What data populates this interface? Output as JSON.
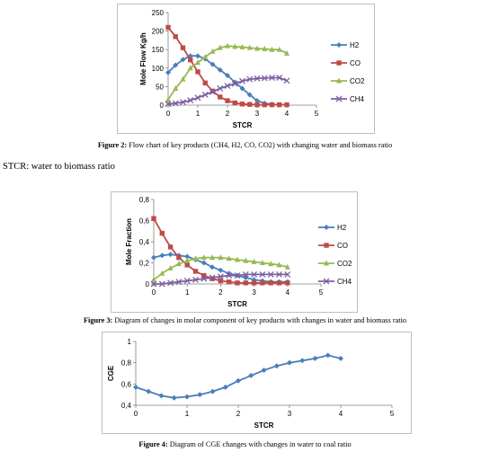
{
  "captions": {
    "fig2_label": "Figure 2:",
    "fig2_text": " Flow chart of key products (CH4, H2, CO, CO2) with changing water and biomass ratio",
    "note": "STCR: water to biomass ratio",
    "fig3_label": "Figure 3:",
    "fig3_text": " Diagram of changes in molar component of key products with changes in water and biomass ratio",
    "fig4_label": "Figure 4:",
    "fig4_text": " Diagram of CGE changes with changes in water to coal ratio"
  },
  "colors": {
    "H2": "#4a7ebb",
    "CO": "#be4b48",
    "CO2": "#98b954",
    "CH4": "#7d60a0",
    "CGE": "#4a7ebb",
    "frame": "#bfbfbf",
    "axis": "#808080"
  },
  "chart_data": [
    {
      "id": "fig2",
      "type": "line",
      "xlabel": "STCR",
      "ylabel": "Mole Flow  Kg/h",
      "xlim": [
        0,
        5
      ],
      "ylim": [
        0,
        250
      ],
      "xticks": [
        0,
        1,
        2,
        3,
        4,
        5
      ],
      "yticks": [
        0,
        50,
        100,
        150,
        200,
        250
      ],
      "ytick_labels": [
        "0",
        "50",
        "100",
        "150",
        "200",
        "250"
      ],
      "grid": false,
      "legend": "right",
      "x": [
        0,
        0.25,
        0.5,
        0.75,
        1,
        1.25,
        1.5,
        1.75,
        2,
        2.25,
        2.5,
        2.75,
        3,
        3.25,
        3.5,
        3.75,
        4
      ],
      "series": [
        {
          "name": "H2",
          "marker": "diamond",
          "values": [
            88,
            108,
            123,
            133,
            133,
            125,
            110,
            95,
            80,
            62,
            45,
            28,
            12,
            5,
            2,
            1,
            1
          ]
        },
        {
          "name": "CO",
          "marker": "square",
          "values": [
            210,
            185,
            155,
            122,
            90,
            60,
            38,
            22,
            12,
            6,
            3,
            2,
            1,
            1,
            1,
            1,
            1
          ]
        },
        {
          "name": "CO2",
          "marker": "triangle",
          "values": [
            15,
            45,
            70,
            100,
            115,
            130,
            145,
            155,
            160,
            158,
            157,
            155,
            153,
            152,
            150,
            150,
            140
          ]
        },
        {
          "name": "CH4",
          "marker": "x",
          "values": [
            3,
            5,
            8,
            13,
            20,
            28,
            36,
            45,
            52,
            58,
            65,
            70,
            72,
            73,
            74,
            74,
            66
          ]
        }
      ]
    },
    {
      "id": "fig3",
      "type": "line",
      "xlabel": "STCR",
      "ylabel": "Mole Fraction",
      "xlim": [
        0,
        5
      ],
      "ylim": [
        0,
        0.8
      ],
      "xticks": [
        0,
        1,
        2,
        3,
        4,
        5
      ],
      "yticks": [
        0,
        0.2,
        0.4,
        0.6,
        0.8
      ],
      "ytick_labels": [
        "0",
        "0,2",
        "0,4",
        "0,6",
        "0,8"
      ],
      "grid": false,
      "legend": "right",
      "x": [
        0,
        0.25,
        0.5,
        0.75,
        1,
        1.25,
        1.5,
        1.75,
        2,
        2.25,
        2.5,
        2.75,
        3,
        3.25,
        3.5,
        3.75,
        4
      ],
      "series": [
        {
          "name": "H2",
          "marker": "diamond",
          "values": [
            0.25,
            0.27,
            0.28,
            0.27,
            0.26,
            0.23,
            0.2,
            0.16,
            0.13,
            0.1,
            0.08,
            0.06,
            0.04,
            0.03,
            0.02,
            0.02,
            0.02
          ]
        },
        {
          "name": "CO",
          "marker": "square",
          "values": [
            0.62,
            0.48,
            0.35,
            0.25,
            0.18,
            0.12,
            0.08,
            0.05,
            0.03,
            0.02,
            0.01,
            0.01,
            0.01,
            0.01,
            0.01,
            0.01,
            0.01
          ]
        },
        {
          "name": "CO2",
          "marker": "triangle",
          "values": [
            0.04,
            0.1,
            0.15,
            0.19,
            0.22,
            0.24,
            0.25,
            0.25,
            0.25,
            0.24,
            0.23,
            0.22,
            0.21,
            0.2,
            0.19,
            0.18,
            0.16
          ]
        },
        {
          "name": "CH4",
          "marker": "x",
          "values": [
            0.0,
            0.0,
            0.01,
            0.02,
            0.03,
            0.04,
            0.05,
            0.06,
            0.07,
            0.08,
            0.08,
            0.09,
            0.09,
            0.09,
            0.09,
            0.09,
            0.09
          ]
        }
      ]
    },
    {
      "id": "fig4",
      "type": "line",
      "xlabel": "STCR",
      "ylabel": "CGE",
      "xlim": [
        0,
        5
      ],
      "ylim": [
        0.4,
        1
      ],
      "xticks": [
        0,
        1,
        2,
        3,
        4,
        5
      ],
      "yticks": [
        0.4,
        0.6,
        0.8,
        1
      ],
      "ytick_labels": [
        "0,4",
        "0,6",
        "0,8",
        "1"
      ],
      "grid": false,
      "legend": "none",
      "x": [
        0,
        0.25,
        0.5,
        0.75,
        1,
        1.25,
        1.5,
        1.75,
        2,
        2.25,
        2.5,
        2.75,
        3,
        3.25,
        3.5,
        3.75,
        4
      ],
      "series": [
        {
          "name": "",
          "marker": "diamond",
          "values": [
            0.57,
            0.53,
            0.49,
            0.47,
            0.48,
            0.5,
            0.53,
            0.57,
            0.63,
            0.68,
            0.73,
            0.77,
            0.8,
            0.82,
            0.84,
            0.87,
            0.84
          ]
        }
      ]
    }
  ]
}
